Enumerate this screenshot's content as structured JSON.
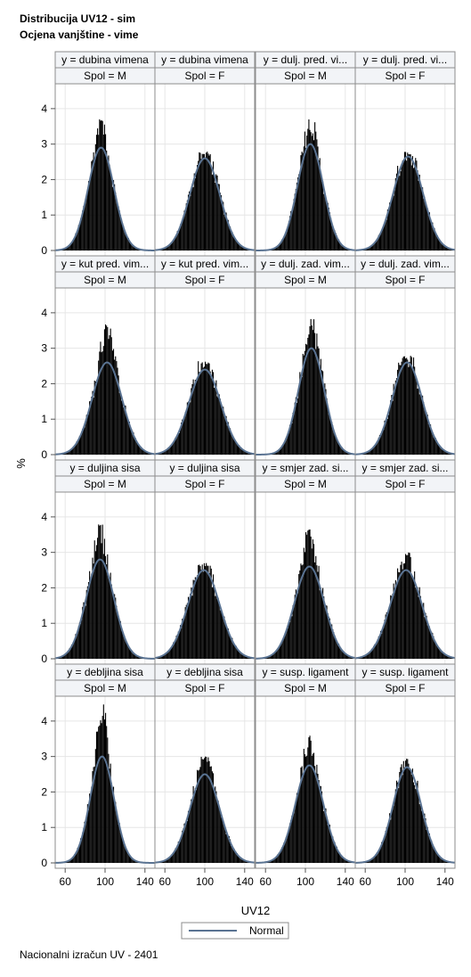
{
  "titles": {
    "line1": "Distribucija UV12 - sim",
    "line2": "Ocjena vanjštine - vime"
  },
  "footnote": "Nacionalni izračun UV - 2401",
  "colors": {
    "bar": "#000000",
    "normal_curve": "#5a7392",
    "panel_border": "#8c8c8c",
    "header_bg": "#f2f4f7",
    "grid": "#e6e6e6"
  },
  "chart_data": {
    "type": "bar",
    "description_kind": "histogram panel grid with normal density overlay",
    "xlabel": "UV12",
    "ylabel": "%",
    "xlim": [
      50,
      150
    ],
    "ylim": [
      0,
      4.6
    ],
    "x_ticks": [
      60,
      100,
      140
    ],
    "y_ticks": [
      0,
      1,
      2,
      3,
      4
    ],
    "legend": {
      "position": "bottom-center",
      "entries": [
        "Normal"
      ]
    },
    "grid": true,
    "panels": [
      {
        "trait": "y = dubina vimena",
        "spol": "Spol = M",
        "mean": 96,
        "sd": 13,
        "peak": 3.7,
        "curve_peak": 2.9
      },
      {
        "trait": "y = dubina vimena",
        "spol": "Spol = F",
        "mean": 100,
        "sd": 15,
        "peak": 2.8,
        "curve_peak": 2.6
      },
      {
        "trait": "y = dulj. pred. vi...",
        "spol": "Spol = M",
        "mean": 105,
        "sd": 13,
        "peak": 3.75,
        "curve_peak": 3.0
      },
      {
        "trait": "y = dulj. pred. vi...",
        "spol": "Spol = F",
        "mean": 103,
        "sd": 15,
        "peak": 2.8,
        "curve_peak": 2.65
      },
      {
        "trait": "y = kut pred. vim...",
        "spol": "Spol = M",
        "mean": 102,
        "sd": 15,
        "peak": 3.9,
        "curve_peak": 2.6
      },
      {
        "trait": "y = kut pred. vim...",
        "spol": "Spol = F",
        "mean": 100,
        "sd": 16,
        "peak": 2.65,
        "curve_peak": 2.4
      },
      {
        "trait": "y = dulj. zad. vim...",
        "spol": "Spol = M",
        "mean": 106,
        "sd": 13,
        "peak": 3.9,
        "curve_peak": 3.0
      },
      {
        "trait": "y = dulj. zad. vim...",
        "spol": "Spol = F",
        "mean": 102,
        "sd": 15,
        "peak": 2.8,
        "curve_peak": 2.6
      },
      {
        "trait": "y = duljina sisa",
        "spol": "Spol = M",
        "mean": 95,
        "sd": 14,
        "peak": 3.8,
        "curve_peak": 2.8
      },
      {
        "trait": "y = duljina sisa",
        "spol": "Spol = F",
        "mean": 99,
        "sd": 16,
        "peak": 2.7,
        "curve_peak": 2.5
      },
      {
        "trait": "y = smjer zad. si...",
        "spol": "Spol = M",
        "mean": 104,
        "sd": 15,
        "peak": 3.7,
        "curve_peak": 2.6
      },
      {
        "trait": "y = smjer zad. si...",
        "spol": "Spol = F",
        "mean": 101,
        "sd": 16,
        "peak": 3.0,
        "curve_peak": 2.5
      },
      {
        "trait": "y = debljina sisa",
        "spol": "Spol = M",
        "mean": 97,
        "sd": 12,
        "peak": 4.5,
        "curve_peak": 3.0
      },
      {
        "trait": "y = debljina sisa",
        "spol": "Spol = F",
        "mean": 100,
        "sd": 15,
        "peak": 3.0,
        "curve_peak": 2.5
      },
      {
        "trait": "y = susp. ligament",
        "spol": "Spol = M",
        "mean": 104,
        "sd": 14,
        "peak": 3.6,
        "curve_peak": 2.75
      },
      {
        "trait": "y = susp. ligament",
        "spol": "Spol = F",
        "mean": 102,
        "sd": 14,
        "peak": 2.95,
        "curve_peak": 2.7
      }
    ]
  }
}
